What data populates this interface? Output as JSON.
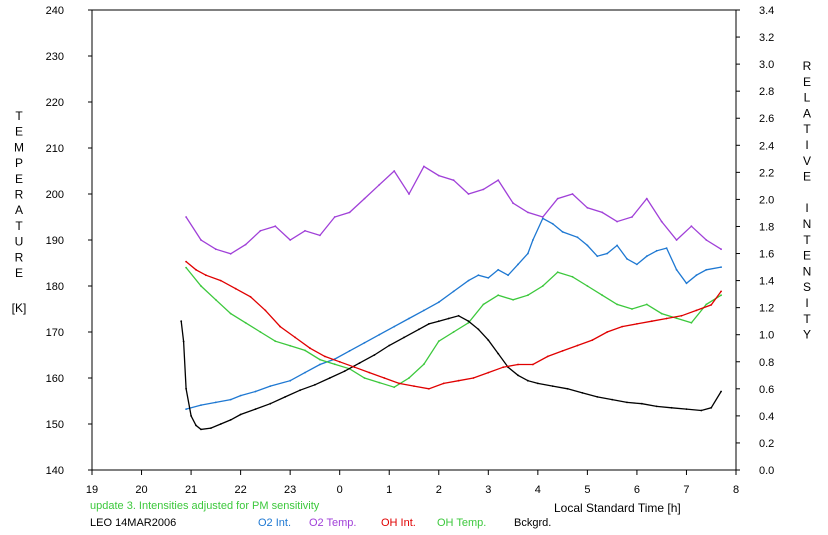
{
  "chart_data": {
    "type": "line",
    "xlabel": "Local Standard Time [h]",
    "ylabel_left_letters": [
      "T",
      "E",
      "M",
      "P",
      "E",
      "R",
      "A",
      "T",
      "U",
      "R",
      "E"
    ],
    "ylabel_left_unit": "[K]",
    "ylabel_right_letters": [
      "R",
      "E",
      "L",
      "A",
      "T",
      "I",
      "V",
      "E",
      "",
      "I",
      "N",
      "T",
      "E",
      "N",
      "S",
      "I",
      "T",
      "Y"
    ],
    "x_ticks": [
      "19",
      "20",
      "21",
      "22",
      "23",
      "0",
      "1",
      "2",
      "3",
      "4",
      "5",
      "6",
      "7",
      "8"
    ],
    "xlim": [
      19,
      32
    ],
    "ylim_left": [
      140,
      240
    ],
    "ylim_right": [
      0.0,
      3.4
    ],
    "y_left_ticks": [
      140,
      150,
      160,
      170,
      180,
      190,
      200,
      210,
      220,
      230,
      240
    ],
    "y_right_ticks": [
      "0.0",
      "0.2",
      "0.4",
      "0.6",
      "0.8",
      "1.0",
      "1.2",
      "1.4",
      "1.6",
      "1.8",
      "2.0",
      "2.2",
      "2.4",
      "2.6",
      "2.8",
      "3.0",
      "3.2",
      "3.4"
    ],
    "note": "update 3. Intensities adjusted for PM sensitivity",
    "station": "LEO 14MAR2006",
    "grid": false,
    "series": [
      {
        "name": "O2 Int.",
        "axis": "right",
        "color": "#1e78d2",
        "x": [
          20.9,
          21.2,
          21.5,
          21.8,
          22.0,
          22.3,
          22.6,
          23.0,
          23.3,
          23.6,
          23.9,
          24.2,
          24.5,
          24.8,
          25.1,
          25.4,
          25.7,
          26.0,
          26.3,
          26.6,
          26.8,
          27.0,
          27.2,
          27.4,
          27.6,
          27.8,
          27.9,
          28.1,
          28.3,
          28.5,
          28.8,
          29.0,
          29.2,
          29.4,
          29.6,
          29.8,
          30.0,
          30.2,
          30.4,
          30.6,
          30.8,
          31.0,
          31.2,
          31.4,
          31.7
        ],
        "values": [
          0.45,
          0.48,
          0.5,
          0.52,
          0.55,
          0.58,
          0.62,
          0.66,
          0.72,
          0.78,
          0.82,
          0.88,
          0.94,
          1.0,
          1.06,
          1.12,
          1.18,
          1.24,
          1.32,
          1.4,
          1.44,
          1.42,
          1.48,
          1.44,
          1.52,
          1.6,
          1.7,
          1.86,
          1.82,
          1.76,
          1.72,
          1.66,
          1.58,
          1.6,
          1.66,
          1.56,
          1.52,
          1.58,
          1.62,
          1.64,
          1.48,
          1.38,
          1.44,
          1.48,
          1.5
        ]
      },
      {
        "name": "O2 Temp.",
        "axis": "left",
        "color": "#a040d8",
        "x": [
          20.9,
          21.2,
          21.5,
          21.8,
          22.1,
          22.4,
          22.7,
          23.0,
          23.3,
          23.6,
          23.9,
          24.2,
          24.5,
          24.8,
          25.1,
          25.4,
          25.7,
          26.0,
          26.3,
          26.6,
          26.9,
          27.2,
          27.5,
          27.8,
          28.1,
          28.4,
          28.7,
          29.0,
          29.3,
          29.6,
          29.9,
          30.2,
          30.5,
          30.8,
          31.1,
          31.4,
          31.7
        ],
        "values": [
          195,
          190,
          188,
          187,
          189,
          192,
          193,
          190,
          192,
          191,
          195,
          196,
          199,
          202,
          205,
          200,
          206,
          204,
          203,
          200,
          201,
          203,
          198,
          196,
          195,
          199,
          200,
          197,
          196,
          194,
          195,
          199,
          194,
          190,
          193,
          190,
          188
        ]
      },
      {
        "name": "OH Int.",
        "axis": "right",
        "color": "#e00000",
        "x": [
          20.9,
          21.1,
          21.3,
          21.6,
          21.9,
          22.2,
          22.5,
          22.8,
          23.1,
          23.4,
          23.7,
          24.0,
          24.3,
          24.6,
          24.9,
          25.2,
          25.5,
          25.8,
          26.1,
          26.4,
          26.7,
          27.0,
          27.3,
          27.6,
          27.9,
          28.2,
          28.5,
          28.8,
          29.1,
          29.4,
          29.7,
          30.0,
          30.3,
          30.6,
          30.9,
          31.2,
          31.5,
          31.7
        ],
        "values": [
          1.54,
          1.48,
          1.44,
          1.4,
          1.34,
          1.28,
          1.18,
          1.06,
          0.98,
          0.9,
          0.84,
          0.8,
          0.76,
          0.72,
          0.68,
          0.64,
          0.62,
          0.6,
          0.64,
          0.66,
          0.68,
          0.72,
          0.76,
          0.78,
          0.78,
          0.84,
          0.88,
          0.92,
          0.96,
          1.02,
          1.06,
          1.08,
          1.1,
          1.12,
          1.14,
          1.18,
          1.22,
          1.32
        ]
      },
      {
        "name": "OH Temp.",
        "axis": "left",
        "color": "#3cc83c",
        "x": [
          20.9,
          21.2,
          21.5,
          21.8,
          22.1,
          22.4,
          22.7,
          23.0,
          23.3,
          23.6,
          23.9,
          24.2,
          24.5,
          24.8,
          25.1,
          25.4,
          25.7,
          26.0,
          26.3,
          26.6,
          26.9,
          27.2,
          27.5,
          27.8,
          28.1,
          28.4,
          28.7,
          29.0,
          29.3,
          29.6,
          29.9,
          30.2,
          30.5,
          30.8,
          31.1,
          31.4,
          31.7
        ],
        "values": [
          184,
          180,
          177,
          174,
          172,
          170,
          168,
          167,
          166,
          164,
          163,
          162,
          160,
          159,
          158,
          160,
          163,
          168,
          170,
          172,
          176,
          178,
          177,
          178,
          180,
          183,
          182,
          180,
          178,
          176,
          175,
          176,
          174,
          173,
          172,
          176,
          178
        ]
      },
      {
        "name": "Bckgrd.",
        "axis": "right",
        "color": "#000000",
        "x": [
          20.8,
          20.85,
          20.9,
          21.0,
          21.1,
          21.2,
          21.4,
          21.6,
          21.8,
          22.0,
          22.3,
          22.6,
          22.9,
          23.2,
          23.5,
          23.8,
          24.1,
          24.4,
          24.7,
          25.0,
          25.3,
          25.6,
          25.8,
          26.0,
          26.2,
          26.4,
          26.6,
          26.8,
          27.0,
          27.2,
          27.4,
          27.6,
          27.8,
          28.0,
          28.3,
          28.6,
          28.9,
          29.2,
          29.5,
          29.8,
          30.1,
          30.4,
          30.7,
          31.0,
          31.3,
          31.5,
          31.7
        ],
        "values": [
          1.1,
          0.95,
          0.6,
          0.4,
          0.33,
          0.3,
          0.31,
          0.34,
          0.37,
          0.41,
          0.45,
          0.49,
          0.54,
          0.59,
          0.63,
          0.68,
          0.73,
          0.79,
          0.85,
          0.92,
          0.98,
          1.04,
          1.08,
          1.1,
          1.12,
          1.14,
          1.1,
          1.04,
          0.96,
          0.86,
          0.76,
          0.7,
          0.66,
          0.64,
          0.62,
          0.6,
          0.57,
          0.54,
          0.52,
          0.5,
          0.49,
          0.47,
          0.46,
          0.45,
          0.44,
          0.46,
          0.58
        ]
      }
    ]
  }
}
